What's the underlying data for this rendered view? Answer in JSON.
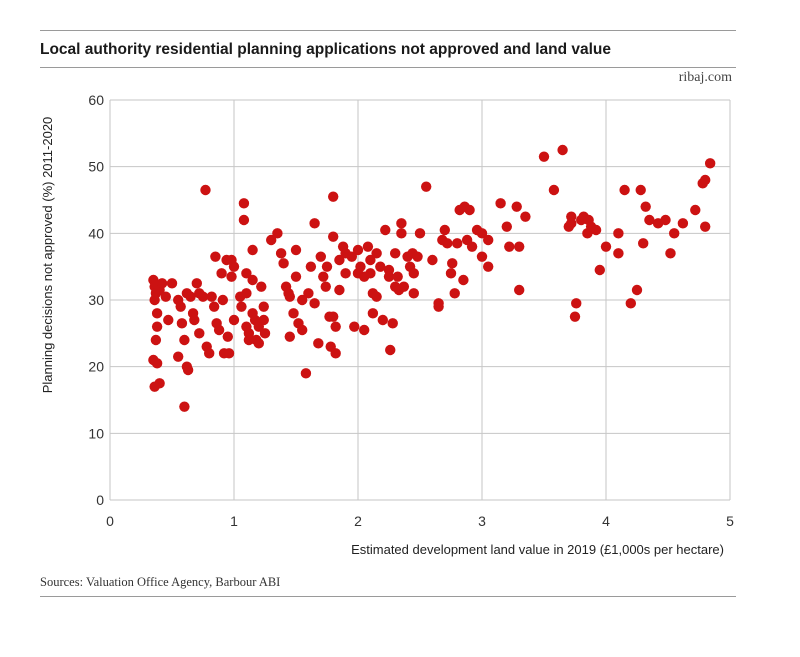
{
  "header": {
    "title": "Local authority residential planning applications not approved and land value",
    "brand": "ribaj.com"
  },
  "footer": {
    "sources": "Sources: Valuation Office Agency, Barbour ABI"
  },
  "colors": {
    "points": "#cc1212",
    "grid": "#c6c6c6",
    "rule": "#9a9a9a"
  },
  "chart_data": {
    "type": "scatter",
    "title": "Local authority residential planning applications not approved and land value",
    "xlabel": "Estimated development land value in 2019 (£1,000s per hectare)",
    "ylabel": "Planning decisions not approved (%) 2011-2020",
    "xlim": [
      0,
      5
    ],
    "ylim": [
      0,
      60
    ],
    "xticks": [
      "0",
      "1",
      "2",
      "3",
      "4",
      "5"
    ],
    "yticks": [
      "0",
      "10",
      "20",
      "30",
      "40",
      "50",
      "60"
    ],
    "grid": true,
    "legend": "none",
    "points": [
      [
        0.35,
        33.0
      ],
      [
        0.36,
        32.0
      ],
      [
        0.37,
        31.0
      ],
      [
        0.36,
        30.0
      ],
      [
        0.38,
        28.0
      ],
      [
        0.38,
        26.0
      ],
      [
        0.37,
        24.0
      ],
      [
        0.4,
        31.5
      ],
      [
        0.42,
        32.5
      ],
      [
        0.45,
        30.5
      ],
      [
        0.47,
        27.0
      ],
      [
        0.35,
        21.0
      ],
      [
        0.38,
        20.5
      ],
      [
        0.4,
        17.5
      ],
      [
        0.36,
        17.0
      ],
      [
        0.5,
        32.5
      ],
      [
        0.55,
        30.0
      ],
      [
        0.57,
        29.0
      ],
      [
        0.58,
        26.5
      ],
      [
        0.55,
        21.5
      ],
      [
        0.6,
        24.0
      ],
      [
        0.62,
        20.0
      ],
      [
        0.63,
        19.5
      ],
      [
        0.6,
        14.0
      ],
      [
        0.62,
        31.0
      ],
      [
        0.65,
        30.5
      ],
      [
        0.67,
        28.0
      ],
      [
        0.68,
        27.0
      ],
      [
        0.7,
        32.5
      ],
      [
        0.72,
        31.0
      ],
      [
        0.72,
        25.0
      ],
      [
        0.75,
        30.5
      ],
      [
        0.78,
        23.0
      ],
      [
        0.8,
        22.0
      ],
      [
        0.77,
        46.5
      ],
      [
        0.82,
        30.5
      ],
      [
        0.84,
        29.0
      ],
      [
        0.85,
        36.5
      ],
      [
        0.86,
        26.5
      ],
      [
        0.88,
        25.5
      ],
      [
        0.9,
        34.0
      ],
      [
        0.91,
        30.0
      ],
      [
        0.92,
        22.0
      ],
      [
        0.94,
        36.0
      ],
      [
        0.95,
        24.5
      ],
      [
        0.96,
        22.0
      ],
      [
        0.98,
        36.0
      ],
      [
        0.98,
        33.5
      ],
      [
        1.0,
        35.0
      ],
      [
        1.0,
        27.0
      ],
      [
        1.05,
        30.5
      ],
      [
        1.06,
        29.0
      ],
      [
        1.08,
        44.5
      ],
      [
        1.08,
        42.0
      ],
      [
        1.1,
        34.0
      ],
      [
        1.1,
        31.0
      ],
      [
        1.1,
        26.0
      ],
      [
        1.12,
        25.0
      ],
      [
        1.12,
        24.0
      ],
      [
        1.15,
        37.5
      ],
      [
        1.15,
        33.0
      ],
      [
        1.15,
        28.0
      ],
      [
        1.17,
        27.0
      ],
      [
        1.18,
        24.0
      ],
      [
        1.2,
        26.0
      ],
      [
        1.2,
        23.5
      ],
      [
        1.22,
        32.0
      ],
      [
        1.24,
        29.0
      ],
      [
        1.24,
        27.0
      ],
      [
        1.25,
        25.0
      ],
      [
        1.3,
        39.0
      ],
      [
        1.35,
        40.0
      ],
      [
        1.38,
        37.0
      ],
      [
        1.4,
        35.5
      ],
      [
        1.42,
        32.0
      ],
      [
        1.44,
        31.0
      ],
      [
        1.45,
        30.5
      ],
      [
        1.45,
        24.5
      ],
      [
        1.48,
        28.0
      ],
      [
        1.5,
        33.5
      ],
      [
        1.5,
        37.5
      ],
      [
        1.52,
        26.5
      ],
      [
        1.55,
        25.5
      ],
      [
        1.55,
        30.0
      ],
      [
        1.58,
        19.0
      ],
      [
        1.6,
        31.0
      ],
      [
        1.62,
        35.0
      ],
      [
        1.65,
        41.5
      ],
      [
        1.65,
        29.5
      ],
      [
        1.68,
        23.5
      ],
      [
        1.7,
        36.5
      ],
      [
        1.72,
        33.5
      ],
      [
        1.74,
        32.0
      ],
      [
        1.75,
        35.0
      ],
      [
        1.77,
        27.5
      ],
      [
        1.78,
        23.0
      ],
      [
        1.8,
        45.5
      ],
      [
        1.8,
        39.5
      ],
      [
        1.8,
        27.5
      ],
      [
        1.82,
        22.0
      ],
      [
        1.82,
        26.0
      ],
      [
        1.85,
        36.0
      ],
      [
        1.85,
        31.5
      ],
      [
        1.88,
        38.0
      ],
      [
        1.9,
        37.0
      ],
      [
        1.9,
        34.0
      ],
      [
        1.95,
        36.5
      ],
      [
        1.97,
        26.0
      ],
      [
        2.0,
        34.0
      ],
      [
        2.0,
        37.5
      ],
      [
        2.02,
        35.0
      ],
      [
        2.05,
        33.5
      ],
      [
        2.05,
        25.5
      ],
      [
        2.08,
        38.0
      ],
      [
        2.1,
        36.0
      ],
      [
        2.1,
        34.0
      ],
      [
        2.12,
        31.0
      ],
      [
        2.12,
        28.0
      ],
      [
        2.15,
        37.0
      ],
      [
        2.15,
        30.5
      ],
      [
        2.18,
        35.0
      ],
      [
        2.2,
        27.0
      ],
      [
        2.22,
        40.5
      ],
      [
        2.25,
        34.5
      ],
      [
        2.25,
        33.5
      ],
      [
        2.26,
        22.5
      ],
      [
        2.28,
        26.5
      ],
      [
        2.3,
        37.0
      ],
      [
        2.3,
        32.0
      ],
      [
        2.32,
        33.5
      ],
      [
        2.33,
        31.5
      ],
      [
        2.35,
        41.5
      ],
      [
        2.35,
        40.0
      ],
      [
        2.37,
        32.0
      ],
      [
        2.4,
        36.5
      ],
      [
        2.42,
        35.0
      ],
      [
        2.44,
        37.0
      ],
      [
        2.45,
        34.0
      ],
      [
        2.45,
        31.0
      ],
      [
        2.48,
        36.5
      ],
      [
        2.5,
        40.0
      ],
      [
        2.55,
        47.0
      ],
      [
        2.6,
        36.0
      ],
      [
        2.65,
        29.5
      ],
      [
        2.65,
        29.0
      ],
      [
        2.68,
        39.0
      ],
      [
        2.7,
        40.5
      ],
      [
        2.72,
        38.5
      ],
      [
        2.75,
        34.0
      ],
      [
        2.76,
        35.5
      ],
      [
        2.78,
        31.0
      ],
      [
        2.8,
        38.5
      ],
      [
        2.82,
        43.5
      ],
      [
        2.85,
        33.0
      ],
      [
        2.86,
        44.0
      ],
      [
        2.88,
        39.0
      ],
      [
        2.9,
        43.5
      ],
      [
        2.92,
        38.0
      ],
      [
        2.96,
        40.5
      ],
      [
        3.0,
        40.0
      ],
      [
        3.0,
        36.5
      ],
      [
        3.05,
        35.0
      ],
      [
        3.05,
        39.0
      ],
      [
        3.15,
        44.5
      ],
      [
        3.2,
        41.0
      ],
      [
        3.22,
        38.0
      ],
      [
        3.28,
        44.0
      ],
      [
        3.3,
        38.0
      ],
      [
        3.3,
        31.5
      ],
      [
        3.35,
        42.5
      ],
      [
        3.5,
        51.5
      ],
      [
        3.58,
        46.5
      ],
      [
        3.65,
        52.5
      ],
      [
        3.7,
        41.0
      ],
      [
        3.72,
        42.5
      ],
      [
        3.72,
        41.5
      ],
      [
        3.75,
        27.5
      ],
      [
        3.76,
        29.5
      ],
      [
        3.8,
        42.0
      ],
      [
        3.82,
        42.5
      ],
      [
        3.85,
        40.0
      ],
      [
        3.86,
        42.0
      ],
      [
        3.88,
        41.0
      ],
      [
        3.92,
        40.5
      ],
      [
        3.95,
        34.5
      ],
      [
        4.0,
        38.0
      ],
      [
        4.1,
        40.0
      ],
      [
        4.1,
        37.0
      ],
      [
        4.15,
        46.5
      ],
      [
        4.2,
        29.5
      ],
      [
        4.25,
        31.5
      ],
      [
        4.28,
        46.5
      ],
      [
        4.3,
        38.5
      ],
      [
        4.32,
        44.0
      ],
      [
        4.35,
        42.0
      ],
      [
        4.42,
        41.5
      ],
      [
        4.48,
        42.0
      ],
      [
        4.52,
        37.0
      ],
      [
        4.55,
        40.0
      ],
      [
        4.62,
        41.5
      ],
      [
        4.72,
        43.5
      ],
      [
        4.78,
        47.5
      ],
      [
        4.8,
        41.0
      ],
      [
        4.8,
        48.0
      ],
      [
        4.84,
        50.5
      ]
    ]
  }
}
